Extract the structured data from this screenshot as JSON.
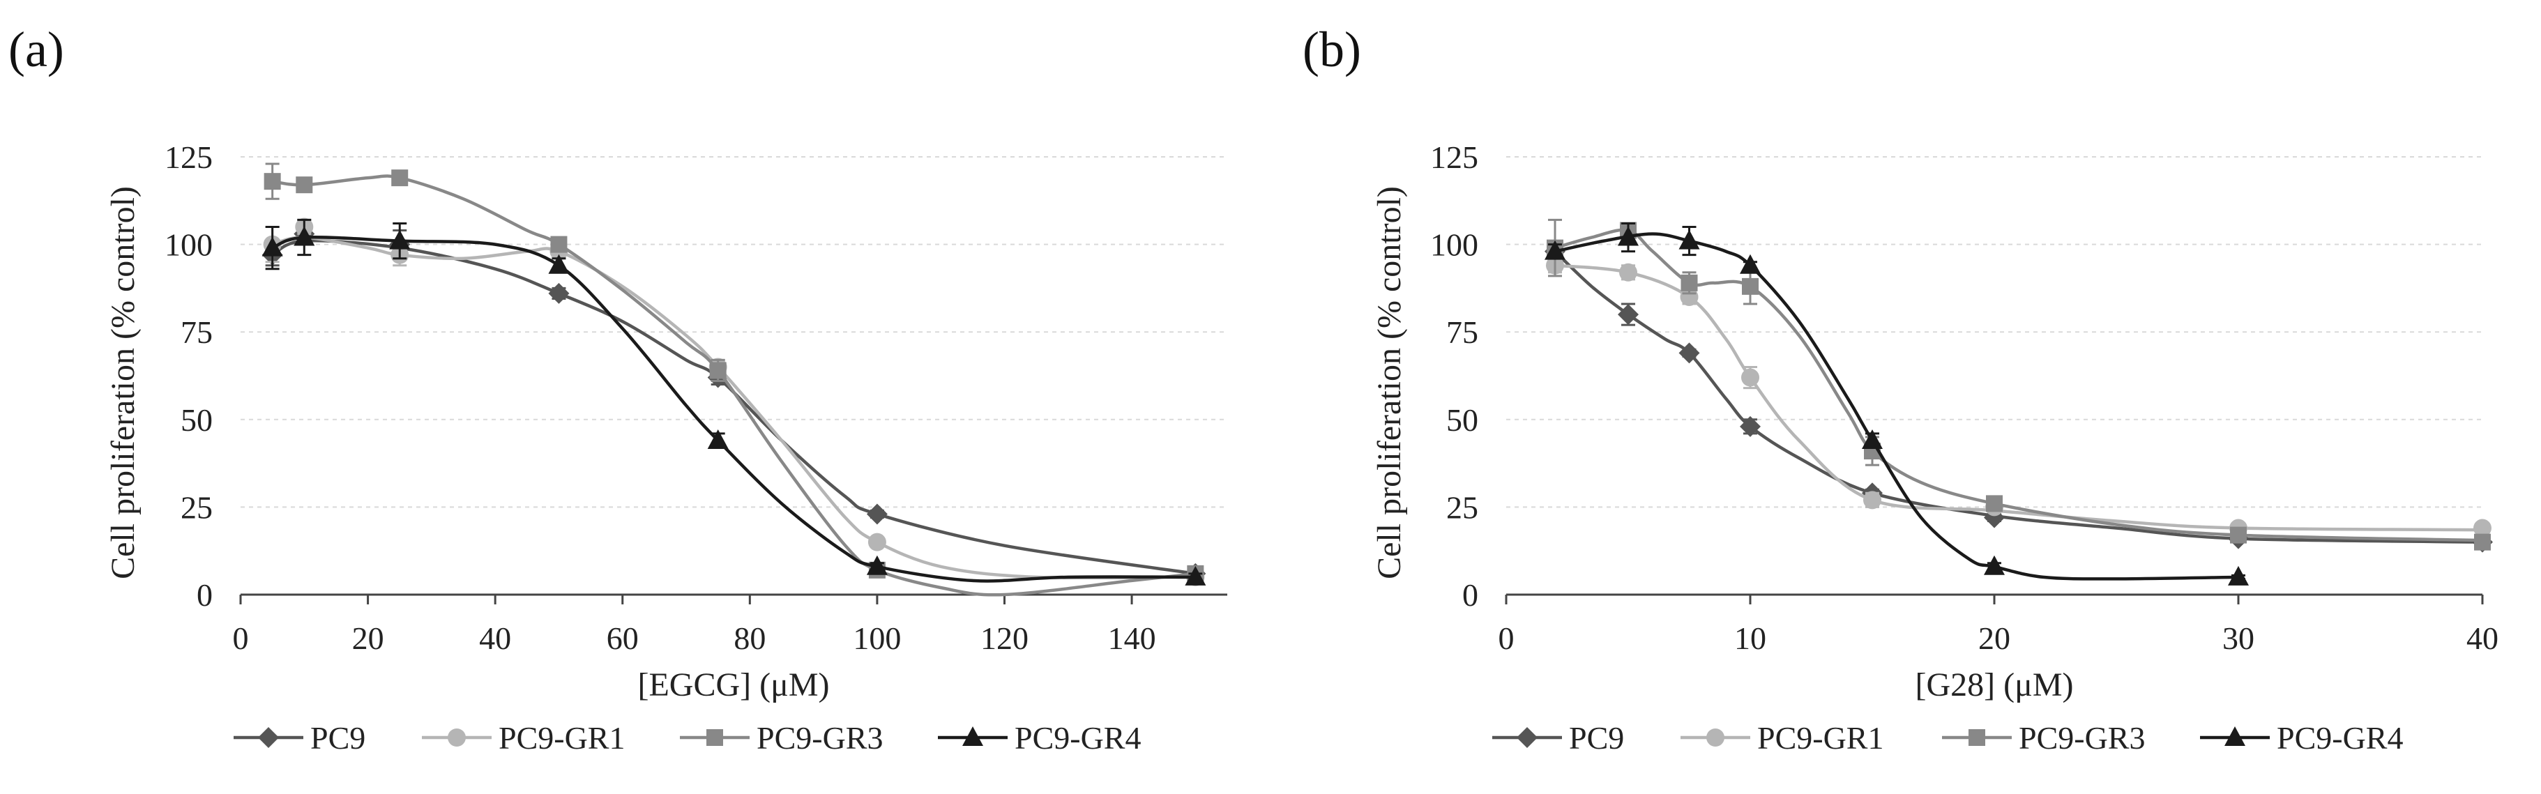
{
  "figure": {
    "panel_labels": [
      "(a)",
      "(b)"
    ],
    "legend": [
      "PC9",
      "PC9-GR1",
      "PC9-GR3",
      "PC9-GR4"
    ]
  },
  "chart_data": [
    {
      "type": "line",
      "panel": "(a)",
      "title": "",
      "xlabel": "[EGCG] (μM)",
      "ylabel": "Cell proliferation (% control)",
      "xlim": [
        0,
        155
      ],
      "ylim": [
        0,
        125
      ],
      "xticks": [
        0,
        20,
        40,
        60,
        80,
        100,
        120,
        140
      ],
      "yticks": [
        0,
        25,
        50,
        75,
        100,
        125
      ],
      "grid": "horizontal dashed",
      "legend_position": "bottom",
      "series": [
        {
          "name": "PC9",
          "marker": "diamond",
          "color": "#555555",
          "x": [
            5,
            10,
            25,
            50,
            75,
            100,
            150
          ],
          "y": [
            97,
            103,
            100,
            86,
            62,
            23,
            6
          ],
          "err": [
            3,
            3,
            4,
            1.5,
            2,
            1,
            1
          ],
          "curve": [
            [
              5,
              97
            ],
            [
              10,
              101
            ],
            [
              25,
              99
            ],
            [
              40,
              93
            ],
            [
              50,
              86
            ],
            [
              60,
              78
            ],
            [
              70,
              67
            ],
            [
              75,
              62
            ],
            [
              85,
              44
            ],
            [
              95,
              28
            ],
            [
              100,
              23
            ],
            [
              120,
              14
            ],
            [
              150,
              6
            ]
          ]
        },
        {
          "name": "PC9-GR1",
          "marker": "circle",
          "color": "#b5b5b5",
          "x": [
            5,
            10,
            25,
            50,
            75,
            100,
            150
          ],
          "y": [
            100,
            105,
            97,
            98,
            65,
            15,
            5
          ],
          "err": [
            5,
            2,
            3,
            1,
            2,
            1,
            1
          ],
          "curve": [
            [
              5,
              100
            ],
            [
              10,
              102
            ],
            [
              20,
              99
            ],
            [
              25,
              97
            ],
            [
              35,
              96
            ],
            [
              45,
              98
            ],
            [
              50,
              98
            ],
            [
              60,
              88
            ],
            [
              70,
              74
            ],
            [
              75,
              65
            ],
            [
              85,
              44
            ],
            [
              95,
              22
            ],
            [
              100,
              15
            ],
            [
              110,
              8
            ],
            [
              125,
              5
            ],
            [
              150,
              5
            ]
          ]
        },
        {
          "name": "PC9-GR3",
          "marker": "square",
          "color": "#888888",
          "x": [
            5,
            10,
            25,
            50,
            75,
            100,
            150
          ],
          "y": [
            118,
            117,
            119,
            100,
            64,
            7,
            6
          ],
          "err": [
            5,
            2,
            1,
            1,
            3,
            1,
            1
          ],
          "curve": [
            [
              5,
              118
            ],
            [
              10,
              117
            ],
            [
              20,
              119
            ],
            [
              25,
              119
            ],
            [
              35,
              113
            ],
            [
              45,
              104
            ],
            [
              50,
              100
            ],
            [
              60,
              87
            ],
            [
              70,
              72
            ],
            [
              75,
              64
            ],
            [
              85,
              38
            ],
            [
              95,
              14
            ],
            [
              100,
              7
            ],
            [
              110,
              2
            ],
            [
              120,
              0
            ],
            [
              140,
              4
            ],
            [
              150,
              6
            ]
          ]
        },
        {
          "name": "PC9-GR4",
          "marker": "triangle",
          "color": "#1a1a1a",
          "x": [
            5,
            10,
            25,
            50,
            75,
            100,
            150
          ],
          "y": [
            99,
            102,
            101,
            94,
            44,
            8,
            5
          ],
          "err": [
            6,
            5,
            5,
            2,
            2,
            1,
            1
          ],
          "curve": [
            [
              5,
              99
            ],
            [
              10,
              102
            ],
            [
              25,
              101
            ],
            [
              40,
              100
            ],
            [
              50,
              94
            ],
            [
              60,
              76
            ],
            [
              70,
              54
            ],
            [
              75,
              44
            ],
            [
              85,
              26
            ],
            [
              95,
              12
            ],
            [
              100,
              8
            ],
            [
              115,
              4
            ],
            [
              130,
              5
            ],
            [
              150,
              5
            ]
          ]
        }
      ]
    },
    {
      "type": "line",
      "panel": "(b)",
      "title": "",
      "xlabel": "[G28] (μM)",
      "ylabel": "Cell proliferation (% control)",
      "xlim": [
        0,
        40
      ],
      "ylim": [
        0,
        125
      ],
      "xticks": [
        0,
        10,
        20,
        30,
        40
      ],
      "yticks": [
        0,
        25,
        50,
        75,
        100,
        125
      ],
      "grid": "horizontal dashed",
      "legend_position": "bottom",
      "series": [
        {
          "name": "PC9",
          "marker": "diamond",
          "color": "#555555",
          "x": [
            2,
            5,
            7.5,
            10,
            15,
            20,
            30,
            40
          ],
          "y": [
            98,
            80,
            69,
            48,
            29,
            22,
            16,
            15
          ],
          "err": [
            2,
            3,
            1,
            2,
            1,
            1,
            1,
            1
          ],
          "curve": [
            [
              2,
              98
            ],
            [
              3.5,
              88
            ],
            [
              5,
              80
            ],
            [
              6.5,
              73
            ],
            [
              7.5,
              69
            ],
            [
              9,
              56
            ],
            [
              10,
              48
            ],
            [
              12,
              39
            ],
            [
              15,
              29
            ],
            [
              20,
              22.5
            ],
            [
              25,
              19
            ],
            [
              30,
              16
            ],
            [
              40,
              15
            ]
          ]
        },
        {
          "name": "PC9-GR1",
          "marker": "circle",
          "color": "#b5b5b5",
          "x": [
            2,
            5,
            7.5,
            10,
            15,
            20,
            30,
            40
          ],
          "y": [
            94,
            92,
            85,
            62,
            27,
            25,
            19,
            19
          ],
          "err": [
            2,
            2,
            2,
            3,
            2,
            1,
            1,
            1
          ],
          "curve": [
            [
              2,
              94
            ],
            [
              5,
              92
            ],
            [
              7.5,
              85
            ],
            [
              9,
              73
            ],
            [
              10,
              62
            ],
            [
              12,
              44
            ],
            [
              15,
              27
            ],
            [
              20,
              24
            ],
            [
              25,
              21
            ],
            [
              30,
              19
            ],
            [
              40,
              18.5
            ]
          ]
        },
        {
          "name": "PC9-GR3",
          "marker": "square",
          "color": "#888888",
          "x": [
            2,
            5,
            7.5,
            10,
            15,
            20,
            30,
            40
          ],
          "y": [
            99,
            104,
            89,
            88,
            41,
            26,
            17,
            15
          ],
          "err": [
            8,
            1,
            3,
            5,
            4,
            1,
            1,
            1
          ],
          "curve": [
            [
              2,
              99
            ],
            [
              3.5,
              102
            ],
            [
              5,
              104
            ],
            [
              6,
              98
            ],
            [
              7.5,
              89
            ],
            [
              8.5,
              89
            ],
            [
              10,
              88
            ],
            [
              12,
              74
            ],
            [
              14,
              52
            ],
            [
              15,
              41
            ],
            [
              17,
              32
            ],
            [
              20,
              26
            ],
            [
              25,
              20
            ],
            [
              30,
              17
            ],
            [
              40,
              15.5
            ]
          ]
        },
        {
          "name": "PC9-GR4",
          "marker": "triangle",
          "color": "#1a1a1a",
          "x": [
            2,
            5,
            7.5,
            10,
            15,
            20,
            30
          ],
          "y": [
            98,
            102,
            101,
            94,
            44,
            8,
            5
          ],
          "err": [
            2,
            4,
            4,
            1,
            2,
            1,
            0.5
          ],
          "curve": [
            [
              2,
              98
            ],
            [
              4,
              101
            ],
            [
              6,
              103
            ],
            [
              7.5,
              101
            ],
            [
              9,
              98
            ],
            [
              10,
              94
            ],
            [
              12,
              78
            ],
            [
              14,
              56
            ],
            [
              15,
              44
            ],
            [
              17,
              22
            ],
            [
              19,
              10
            ],
            [
              20,
              8
            ],
            [
              22,
              5
            ],
            [
              25,
              4.5
            ],
            [
              30,
              5
            ]
          ]
        }
      ]
    }
  ]
}
